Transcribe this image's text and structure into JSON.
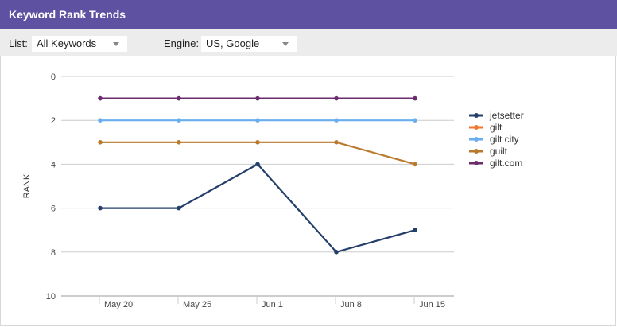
{
  "header": {
    "title": "Keyword Rank Trends"
  },
  "filters": {
    "list_label": "List:",
    "list_value": "All Keywords",
    "engine_label": "Engine:",
    "engine_value": "US, Google"
  },
  "chart_data": {
    "type": "line",
    "title": "",
    "xlabel": "",
    "ylabel": "RANK",
    "categories": [
      "May 20",
      "May 25",
      "Jun 1",
      "Jun 8",
      "Jun 15"
    ],
    "ylim": [
      0,
      10
    ],
    "y_reversed": true,
    "yticks": [
      0,
      2,
      4,
      6,
      8,
      10
    ],
    "grid": true,
    "legend": "right",
    "series": [
      {
        "name": "jetsetter",
        "color": "#253f6b",
        "values": [
          6,
          6,
          4,
          8,
          7
        ]
      },
      {
        "name": "gilt",
        "color": "#f07830",
        "values": [
          null,
          null,
          null,
          null,
          null
        ]
      },
      {
        "name": "gilt city",
        "color": "#6aaef0",
        "values": [
          2,
          2,
          2,
          2,
          2
        ]
      },
      {
        "name": "guilt",
        "color": "#b97a2e",
        "values": [
          3,
          3,
          3,
          3,
          4
        ]
      },
      {
        "name": "gilt.com",
        "color": "#6b2d6e",
        "values": [
          1,
          1,
          1,
          1,
          1
        ]
      }
    ]
  }
}
